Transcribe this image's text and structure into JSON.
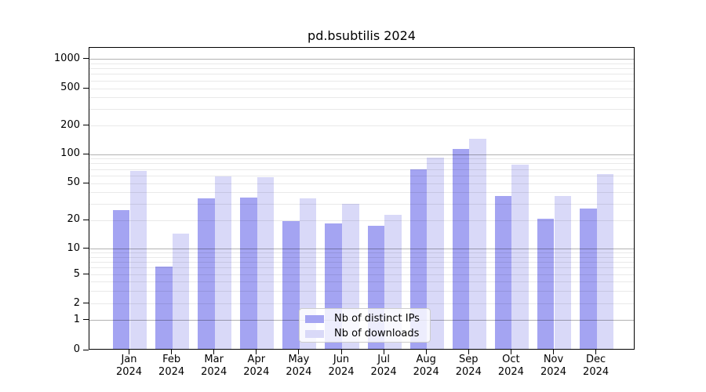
{
  "title": "pd.bsubtilis 2024",
  "chart_data": {
    "type": "bar",
    "title": "pd.bsubtilis 2024",
    "months": [
      "Jan",
      "Feb",
      "Mar",
      "Apr",
      "May",
      "Jun",
      "Jul",
      "Aug",
      "Sep",
      "Oct",
      "Nov",
      "Dec"
    ],
    "year_label": "2024",
    "series": [
      {
        "name": "Nb of distinct IPs",
        "color": "#a4a4f2",
        "values": [
          25,
          6,
          33,
          34,
          19,
          18,
          17,
          67,
          110,
          35,
          20,
          26
        ]
      },
      {
        "name": "Nb of downloads",
        "color": "#d9d9f8",
        "values": [
          65,
          14,
          57,
          56,
          33,
          29,
          22,
          90,
          140,
          75,
          35,
          60
        ]
      }
    ],
    "y_ticks": [
      0,
      1,
      2,
      5,
      10,
      20,
      50,
      100,
      200,
      500,
      1000
    ],
    "major_gridlines": [
      1,
      10,
      100,
      1000
    ],
    "minor_gridline_bases": [
      1,
      10,
      100
    ],
    "yscale": "log-like with compressed 0-2 region",
    "ylim": [
      0,
      1300
    ],
    "grid": "on",
    "legend": {
      "location": "lower center inside plot",
      "labels": [
        "Nb of distinct IPs",
        "Nb of downloads"
      ]
    }
  }
}
